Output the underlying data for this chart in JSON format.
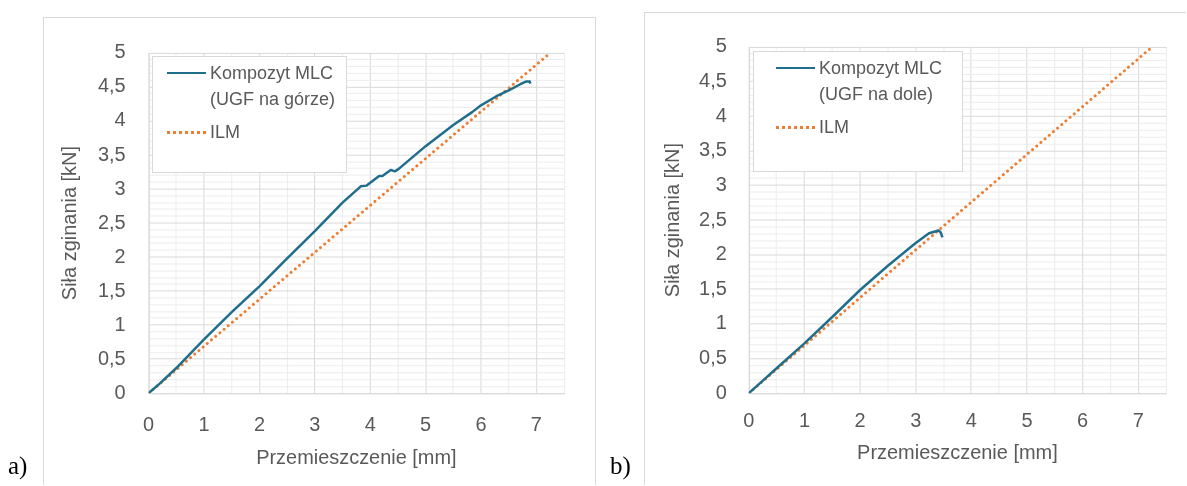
{
  "chart_data": [
    {
      "type": "line",
      "xlabel": "Przemieszczenie [mm]",
      "ylabel": "Siła zginania [kN]",
      "annotations": [
        "a)"
      ],
      "grid": true,
      "legend": "top left",
      "xlim": [
        0,
        7.5
      ],
      "ylim": [
        0,
        5
      ],
      "xticks": [
        0,
        {
          "value": 0.5,
          "label": null
        },
        1,
        {
          "value": 1.5,
          "label": null
        },
        2,
        {
          "value": 2.5,
          "label": null
        },
        3,
        {
          "value": 3.5,
          "label": null
        },
        4,
        {
          "value": 4.5,
          "label": null
        },
        5,
        {
          "value": 5.5,
          "label": null
        },
        6,
        {
          "value": 6.5,
          "label": null
        },
        7,
        {
          "value": 7.5,
          "label": null
        }
      ],
      "yticks": [
        0,
        {
          "value": 0.1,
          "label": null
        },
        {
          "value": 0.2,
          "label": null
        },
        {
          "value": 0.3,
          "label": null
        },
        {
          "value": 0.4,
          "label": null
        },
        {
          "value": 0.5,
          "label": "0,5"
        },
        {
          "value": 0.6,
          "label": null
        },
        {
          "value": 0.7,
          "label": null
        },
        {
          "value": 0.8,
          "label": null
        },
        {
          "value": 0.9,
          "label": null
        },
        1,
        {
          "value": 1.1,
          "label": null
        },
        {
          "value": 1.2,
          "label": null
        },
        {
          "value": 1.3,
          "label": null
        },
        {
          "value": 1.4,
          "label": null
        },
        {
          "value": 1.5,
          "label": "1,5"
        },
        {
          "value": 1.6,
          "label": null
        },
        {
          "value": 1.7,
          "label": null
        },
        {
          "value": 1.8,
          "label": null
        },
        {
          "value": 1.9,
          "label": null
        },
        2,
        {
          "value": 2.1,
          "label": null
        },
        {
          "value": 2.2,
          "label": null
        },
        {
          "value": 2.3,
          "label": null
        },
        {
          "value": 2.4,
          "label": null
        },
        {
          "value": 2.5,
          "label": "2,5"
        },
        {
          "value": 2.6,
          "label": null
        },
        {
          "value": 2.7,
          "label": null
        },
        {
          "value": 2.8,
          "label": null
        },
        {
          "value": 2.9,
          "label": null
        },
        3,
        {
          "value": 3.1,
          "label": null
        },
        {
          "value": 3.2,
          "label": null
        },
        {
          "value": 3.3,
          "label": null
        },
        {
          "value": 3.4,
          "label": null
        },
        {
          "value": 3.5,
          "label": "3,5"
        },
        {
          "value": 3.6,
          "label": null
        },
        {
          "value": 3.7,
          "label": null
        },
        {
          "value": 3.8,
          "label": null
        },
        {
          "value": 3.9,
          "label": null
        },
        4,
        {
          "value": 4.1,
          "label": null
        },
        {
          "value": 4.2,
          "label": null
        },
        {
          "value": 4.3,
          "label": null
        },
        {
          "value": 4.4,
          "label": null
        },
        {
          "value": 4.5,
          "label": "4,5"
        },
        {
          "value": 4.6,
          "label": null
        },
        {
          "value": 4.7,
          "label": null
        },
        {
          "value": 4.8,
          "label": null
        },
        {
          "value": 4.9,
          "label": null
        },
        5
      ],
      "series": [
        {
          "name": "Kompozyt MLC (UGF na górze)",
          "color": "#1f6e8c",
          "line_style": "solid",
          "x": [
            0,
            0.2,
            0.5,
            1,
            1.5,
            2,
            2.5,
            3,
            3.5,
            3.83,
            3.93,
            4.16,
            4.22,
            4.37,
            4.45,
            4.52,
            5,
            5.5,
            5.84,
            6,
            6.27,
            6.5,
            6.71,
            6.81,
            6.88,
            6.89
          ],
          "values": [
            0,
            0.14,
            0.37,
            0.79,
            1.19,
            1.57,
            1.98,
            2.38,
            2.8,
            3.04,
            3.05,
            3.19,
            3.19,
            3.28,
            3.26,
            3.3,
            3.63,
            3.94,
            4.13,
            4.23,
            4.36,
            4.45,
            4.54,
            4.58,
            4.58,
            4.55
          ]
        },
        {
          "name": "ILM",
          "color": "#ed7d31",
          "line_style": "dotted",
          "x": [
            0,
            7.25
          ],
          "values": [
            0,
            5
          ]
        }
      ]
    },
    {
      "type": "line",
      "xlabel": "Przemieszczenie [mm]",
      "ylabel": "Siła zginania [kN]",
      "annotations": [
        "b)"
      ],
      "grid": true,
      "legend": "top left",
      "xlim": [
        0,
        7.5
      ],
      "ylim": [
        0,
        5
      ],
      "xticks": [
        0,
        {
          "value": 0.5,
          "label": null
        },
        1,
        {
          "value": 1.5,
          "label": null
        },
        2,
        {
          "value": 2.5,
          "label": null
        },
        3,
        {
          "value": 3.5,
          "label": null
        },
        4,
        {
          "value": 4.5,
          "label": null
        },
        5,
        {
          "value": 5.5,
          "label": null
        },
        6,
        {
          "value": 6.5,
          "label": null
        },
        7,
        {
          "value": 7.5,
          "label": null
        }
      ],
      "yticks": [
        0,
        {
          "value": 0.1,
          "label": null
        },
        {
          "value": 0.2,
          "label": null
        },
        {
          "value": 0.3,
          "label": null
        },
        {
          "value": 0.4,
          "label": null
        },
        {
          "value": 0.5,
          "label": "0,5"
        },
        {
          "value": 0.6,
          "label": null
        },
        {
          "value": 0.7,
          "label": null
        },
        {
          "value": 0.8,
          "label": null
        },
        {
          "value": 0.9,
          "label": null
        },
        1,
        {
          "value": 1.1,
          "label": null
        },
        {
          "value": 1.2,
          "label": null
        },
        {
          "value": 1.3,
          "label": null
        },
        {
          "value": 1.4,
          "label": null
        },
        {
          "value": 1.5,
          "label": "1,5"
        },
        {
          "value": 1.6,
          "label": null
        },
        {
          "value": 1.7,
          "label": null
        },
        {
          "value": 1.8,
          "label": null
        },
        {
          "value": 1.9,
          "label": null
        },
        2,
        {
          "value": 2.1,
          "label": null
        },
        {
          "value": 2.2,
          "label": null
        },
        {
          "value": 2.3,
          "label": null
        },
        {
          "value": 2.4,
          "label": null
        },
        {
          "value": 2.5,
          "label": "2,5"
        },
        {
          "value": 2.6,
          "label": null
        },
        {
          "value": 2.7,
          "label": null
        },
        {
          "value": 2.8,
          "label": null
        },
        {
          "value": 2.9,
          "label": null
        },
        3,
        {
          "value": 3.1,
          "label": null
        },
        {
          "value": 3.2,
          "label": null
        },
        {
          "value": 3.3,
          "label": null
        },
        {
          "value": 3.4,
          "label": null
        },
        {
          "value": 3.5,
          "label": "3,5"
        },
        {
          "value": 3.6,
          "label": null
        },
        {
          "value": 3.7,
          "label": null
        },
        {
          "value": 3.8,
          "label": null
        },
        {
          "value": 3.9,
          "label": null
        },
        4,
        {
          "value": 4.1,
          "label": null
        },
        {
          "value": 4.2,
          "label": null
        },
        {
          "value": 4.3,
          "label": null
        },
        {
          "value": 4.4,
          "label": null
        },
        {
          "value": 4.5,
          "label": "4,5"
        },
        {
          "value": 4.6,
          "label": null
        },
        {
          "value": 4.7,
          "label": null
        },
        {
          "value": 4.8,
          "label": null
        },
        {
          "value": 4.9,
          "label": null
        },
        5
      ],
      "series": [
        {
          "name": "Kompozyt MLC (UGF na dole)",
          "color": "#1f6e8c",
          "line_style": "solid",
          "x": [
            0,
            0.5,
            1,
            1.5,
            2,
            2.5,
            3,
            3.24,
            3.41,
            3.45,
            3.48
          ],
          "values": [
            0,
            0.36,
            0.72,
            1.1,
            1.49,
            1.84,
            2.17,
            2.31,
            2.35,
            2.32,
            2.25
          ]
        },
        {
          "name": "ILM",
          "color": "#ed7d31",
          "line_style": "dotted",
          "x": [
            0,
            7.25
          ],
          "values": [
            0,
            5
          ]
        }
      ]
    }
  ]
}
